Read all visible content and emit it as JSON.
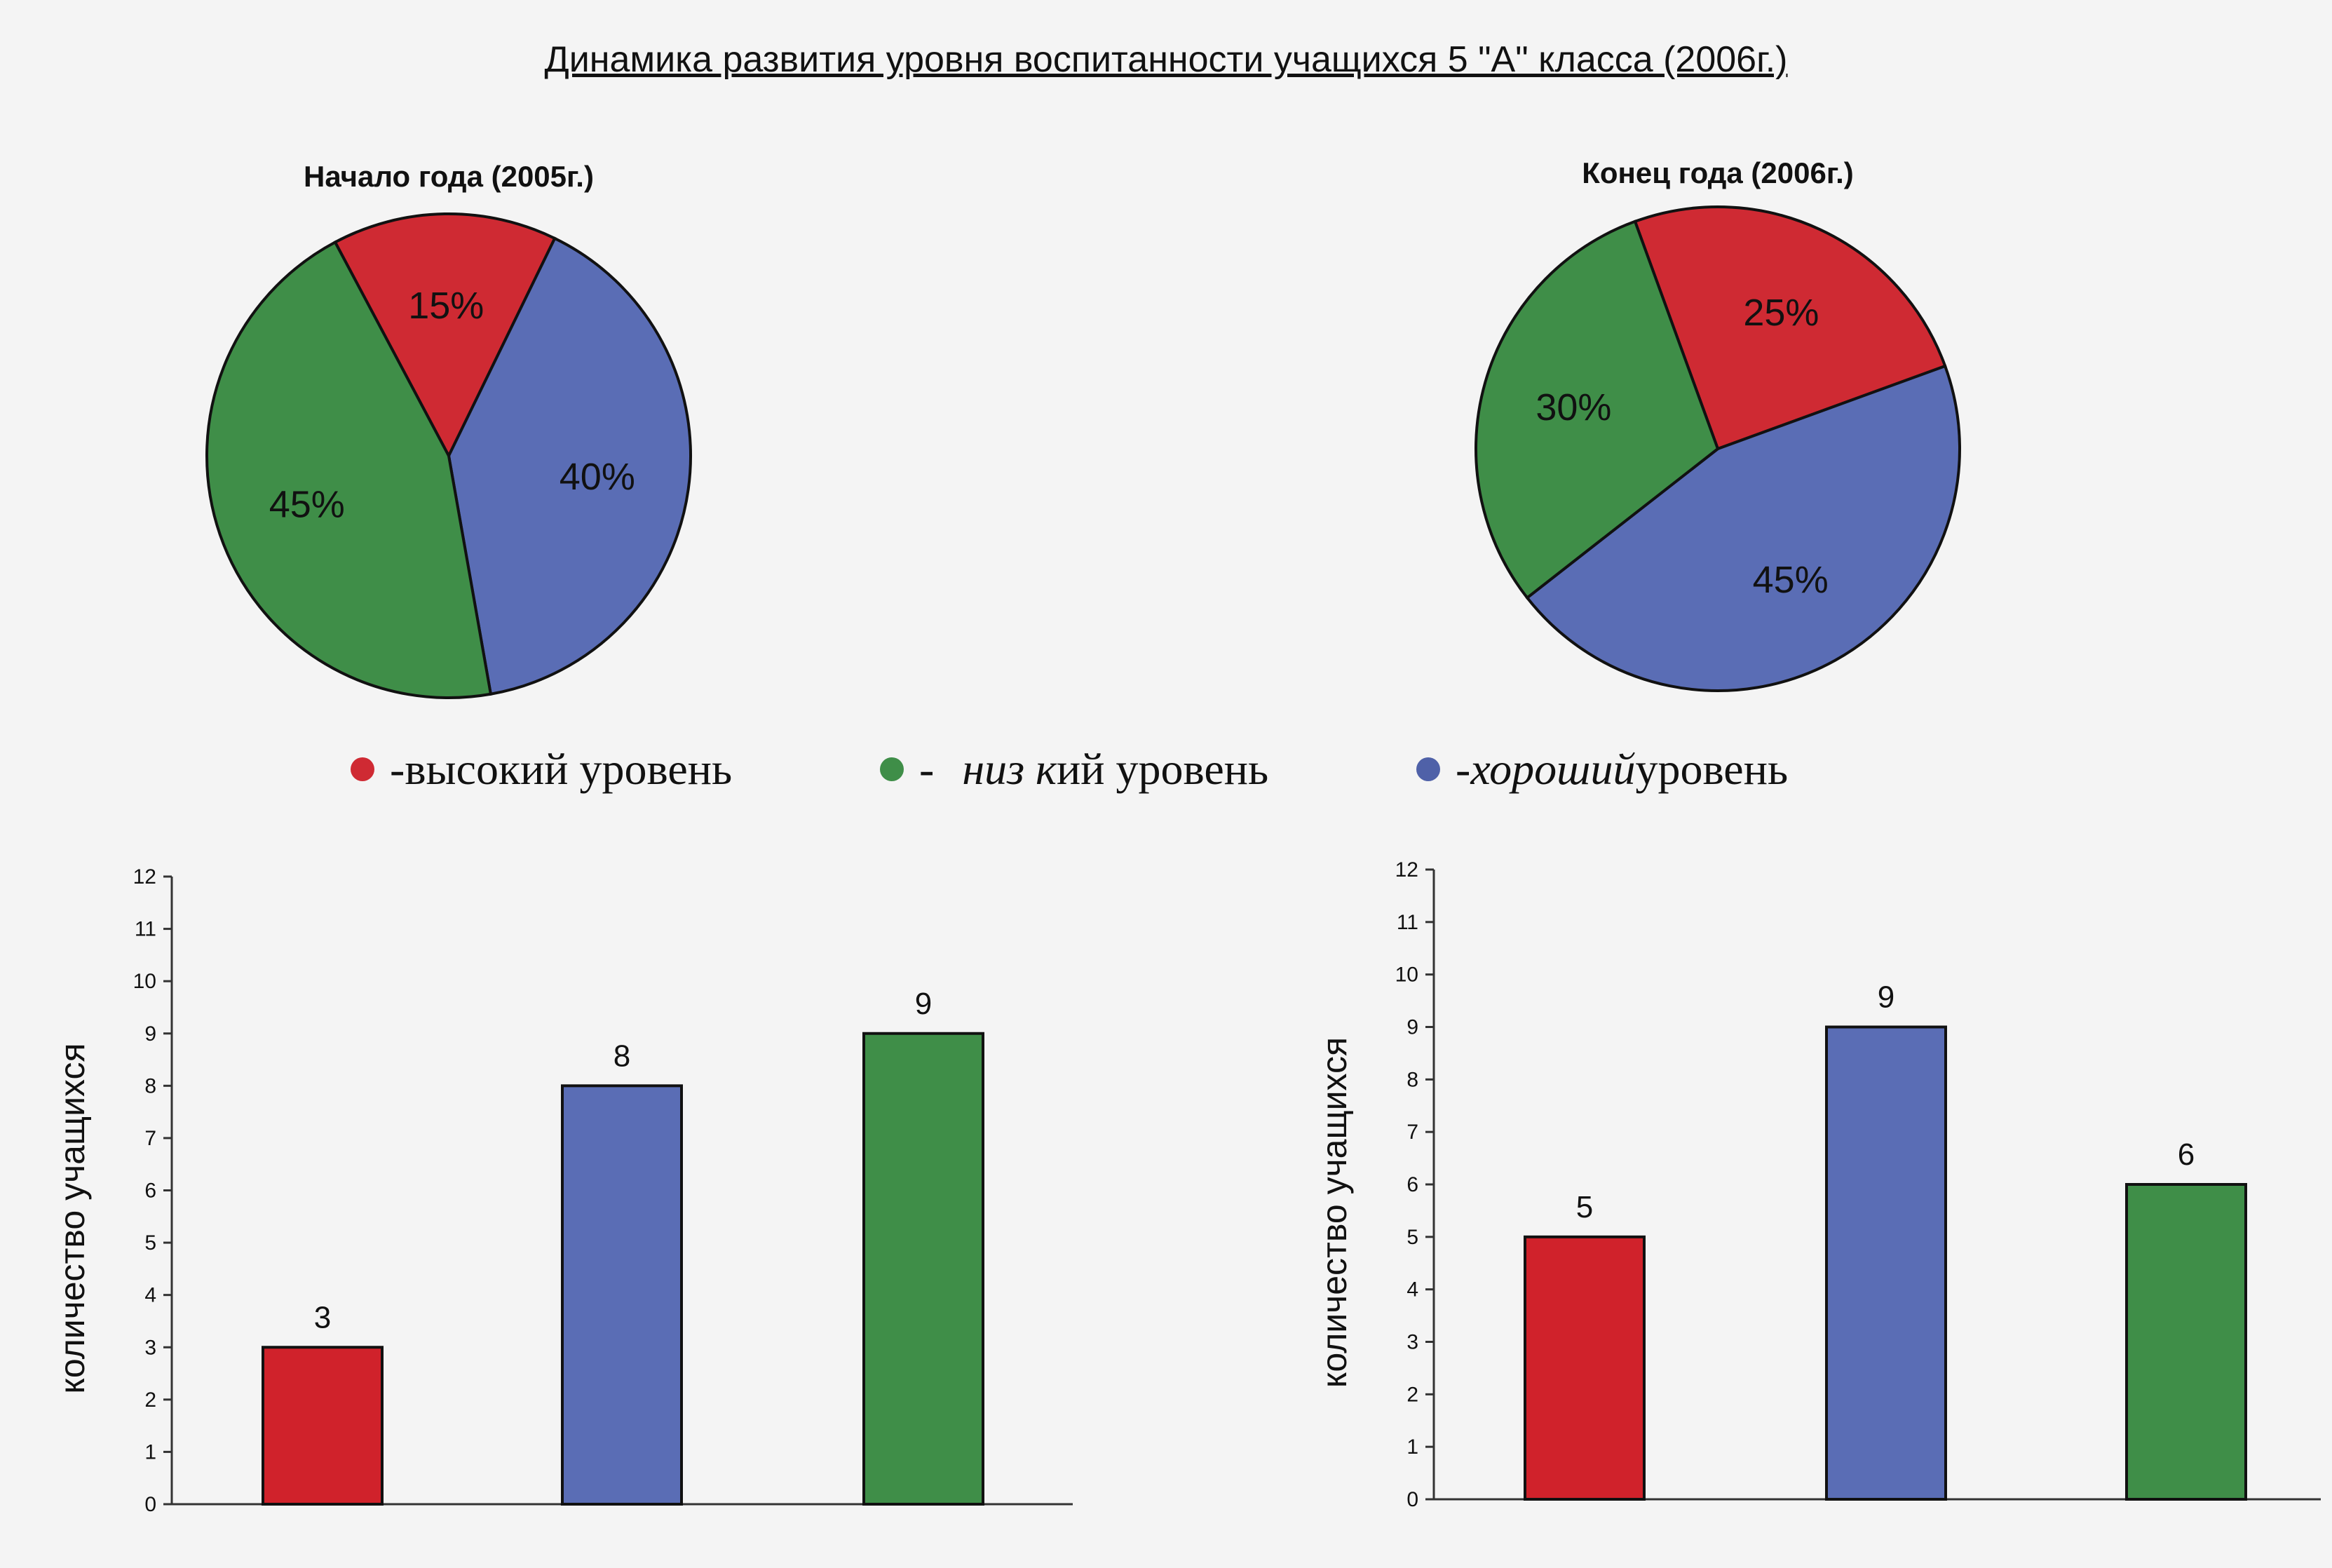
{
  "title": "Динамика развития уровня воспитанности учащихся 5 \"А\" класса (2006г.)",
  "legend": [
    {
      "dash": "- ",
      "italic": "",
      "text": "высокий уровень",
      "color": "#cf2a33"
    },
    {
      "dash": "- ",
      "italic": "низ к",
      "text": "ий уровень",
      "color": "#3f8e48"
    },
    {
      "dash": "",
      "italic": "-хороший",
      "text": " уровень",
      "color": "#4f61a8"
    }
  ],
  "chart_data": [
    {
      "type": "pie",
      "title": "Начало года (2005г.)",
      "slices": [
        {
          "label": "15%",
          "value": 15,
          "color": "#cf2a33"
        },
        {
          "label": "40%",
          "value": 40,
          "color": "#5a6db5"
        },
        {
          "label": "45%",
          "value": 45,
          "color": "#3f8e48"
        }
      ]
    },
    {
      "type": "pie",
      "title": "Конец года (2006г.)",
      "slices": [
        {
          "label": "25%",
          "value": 25,
          "color": "#cf2a33"
        },
        {
          "label": "45%",
          "value": 45,
          "color": "#5a6db5"
        },
        {
          "label": "30%",
          "value": 30,
          "color": "#3f8e48"
        }
      ]
    },
    {
      "type": "bar",
      "ylabel": "количество учащихся",
      "ylim": [
        0,
        12
      ],
      "yticks": [
        "0",
        "1",
        "2",
        "3",
        "4",
        "5",
        "6",
        "7",
        "8",
        "9",
        "10",
        "11",
        "12"
      ],
      "values": [
        3,
        8,
        9
      ],
      "colors": [
        "#d0222b",
        "#5a6db5",
        "#3f8e48"
      ],
      "data_labels": [
        "3",
        "8",
        "9"
      ]
    },
    {
      "type": "bar",
      "ylabel": "количество учащихся",
      "ylim": [
        0,
        12
      ],
      "yticks": [
        "0",
        "1",
        "2",
        "3",
        "4",
        "5",
        "6",
        "7",
        "8",
        "9",
        "10",
        "11",
        "12"
      ],
      "values": [
        5,
        9,
        6
      ],
      "colors": [
        "#d0222b",
        "#5a6db5",
        "#3f8e48"
      ],
      "data_labels": [
        "5",
        "9",
        "6"
      ]
    }
  ]
}
